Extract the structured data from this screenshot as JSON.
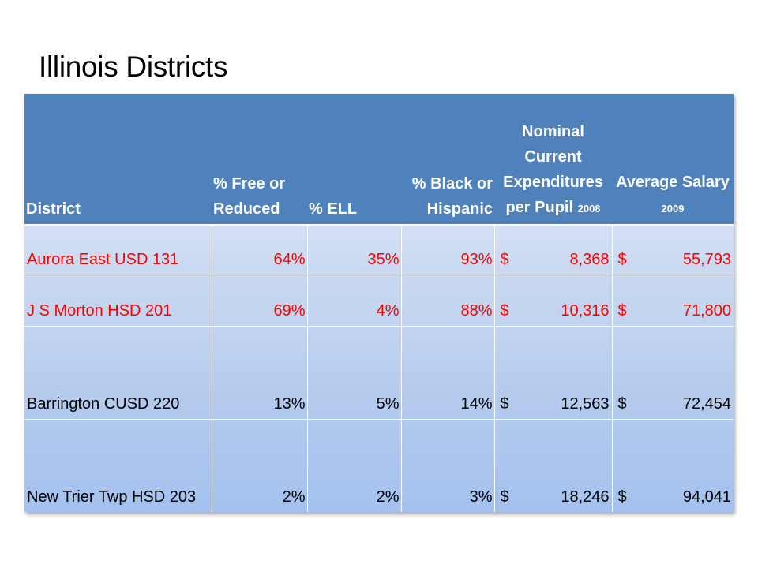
{
  "title": "Illinois Districts",
  "table": {
    "headers": {
      "district": "District",
      "free_reduced": "% Free or Reduced",
      "ell": "% ELL",
      "black_hispanic": "% Black or Hispanic",
      "expenditures": "Nominal Current Expenditures per Pupil",
      "expenditures_year": "2008",
      "salary": "Average Salary",
      "salary_year": "2009"
    },
    "rows": [
      {
        "district": "Aurora East USD 131",
        "free_reduced": "64%",
        "ell": "35%",
        "black_hispanic": "93%",
        "exp_currency": "$",
        "expenditures": "8,368",
        "sal_currency": "$",
        "salary": "55,793",
        "highlight": true
      },
      {
        "district": "J S Morton HSD 201",
        "free_reduced": "69%",
        "ell": "4%",
        "black_hispanic": "88%",
        "exp_currency": "$",
        "expenditures": "10,316",
        "sal_currency": "$",
        "salary": "71,800",
        "highlight": true
      },
      {
        "district": "Barrington CUSD 220",
        "free_reduced": "13%",
        "ell": "5%",
        "black_hispanic": "14%",
        "exp_currency": "$",
        "expenditures": "12,563",
        "sal_currency": "$",
        "salary": "72,454",
        "highlight": false
      },
      {
        "district": "New Trier Twp HSD 203",
        "free_reduced": "2%",
        "ell": "2%",
        "black_hispanic": "3%",
        "exp_currency": "$",
        "expenditures": "18,246",
        "sal_currency": "$",
        "salary": "94,041",
        "highlight": false
      }
    ]
  },
  "colors": {
    "header_bg": "#4f81bd",
    "header_text": "#ffffff",
    "highlight_text": "#ff0000",
    "body_text": "#000000"
  }
}
